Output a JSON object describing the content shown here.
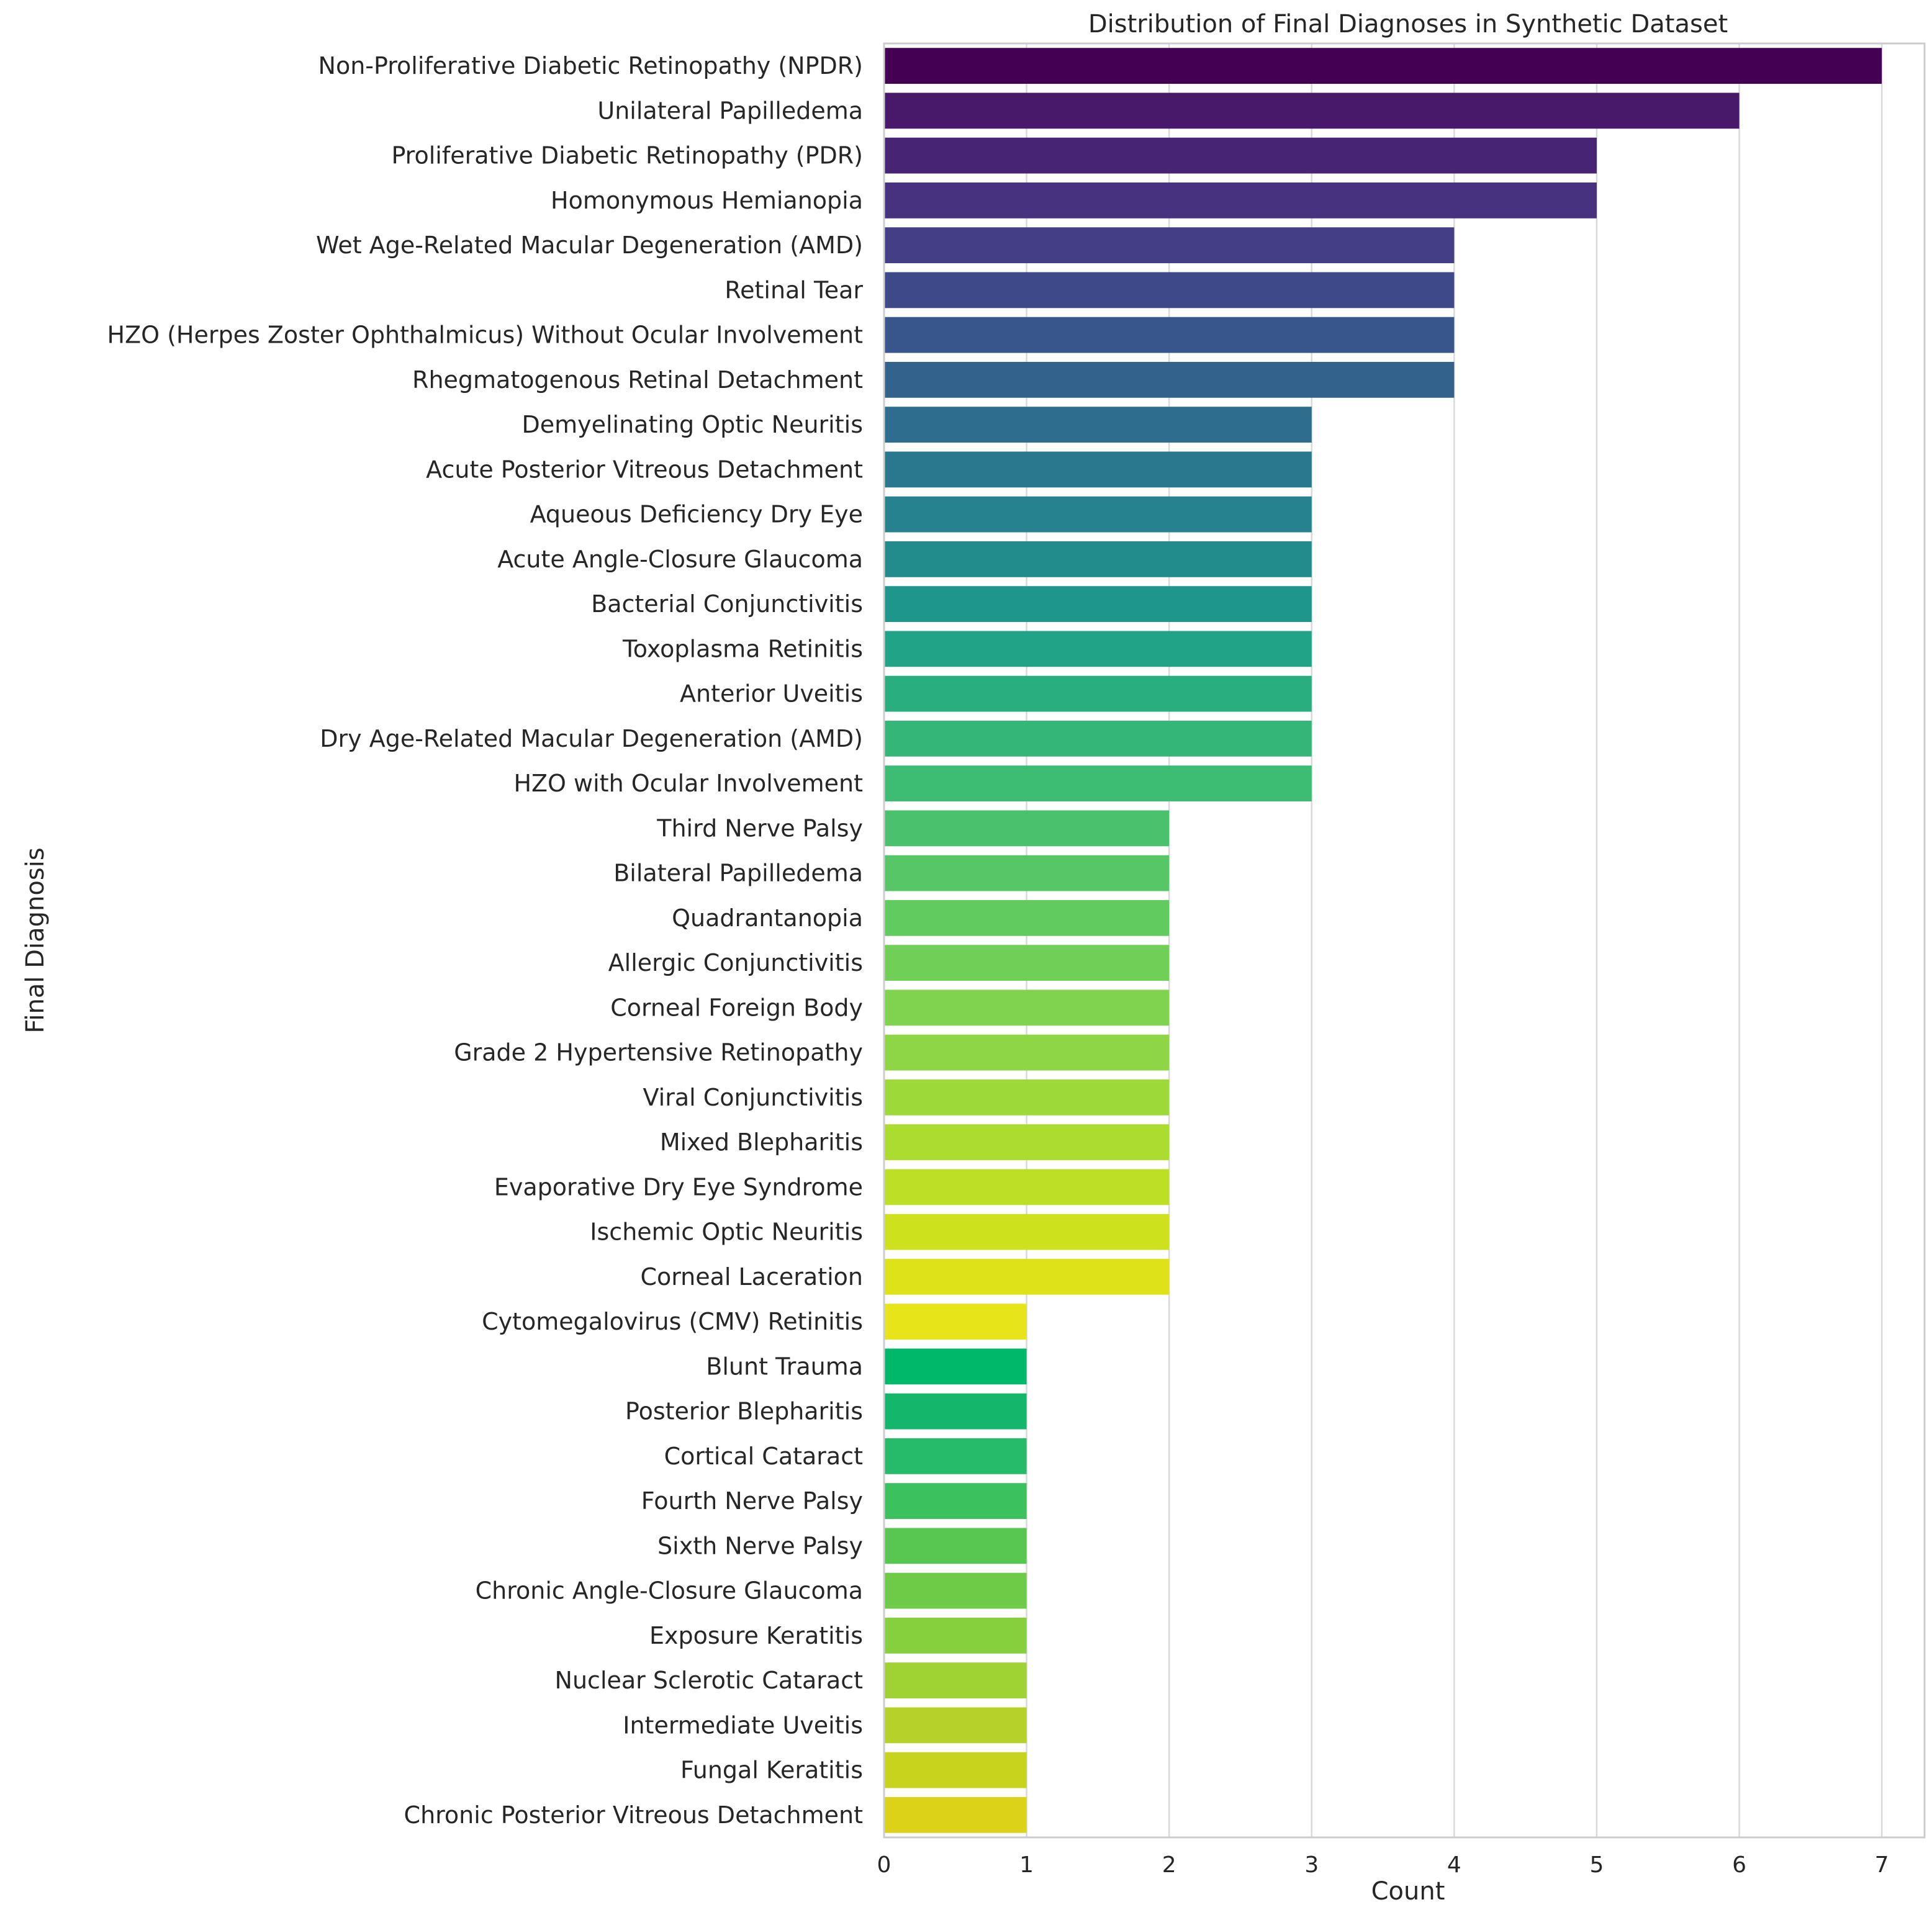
{
  "chart_data": {
    "type": "bar",
    "orientation": "horizontal",
    "title": "Distribution of Final Diagnoses in Synthetic Dataset",
    "xlabel": "Count",
    "ylabel": "Final Diagnosis",
    "xlim": [
      0,
      7.3
    ],
    "xticks": [
      0,
      1,
      2,
      3,
      4,
      5,
      6,
      7
    ],
    "grid": true,
    "palette": "viridis",
    "categories": [
      "Non-Proliferative Diabetic Retinopathy (NPDR)",
      "Unilateral Papilledema",
      "Proliferative Diabetic Retinopathy (PDR)",
      "Homonymous Hemianopia",
      "Wet Age-Related Macular Degeneration (AMD)",
      "Retinal Tear",
      "HZO (Herpes Zoster Ophthalmicus) Without Ocular Involvement",
      "Rhegmatogenous Retinal Detachment",
      "Demyelinating Optic Neuritis",
      "Acute Posterior Vitreous Detachment",
      "Aqueous Deficiency Dry Eye",
      "Acute Angle-Closure Glaucoma",
      "Bacterial Conjunctivitis",
      "Toxoplasma Retinitis",
      "Anterior Uveitis",
      "Dry Age-Related Macular Degeneration (AMD)",
      "HZO with Ocular Involvement",
      "Third Nerve Palsy",
      "Bilateral Papilledema",
      "Quadrantanopia",
      "Allergic Conjunctivitis",
      "Corneal Foreign Body",
      "Grade 2 Hypertensive Retinopathy",
      "Viral Conjunctivitis",
      "Mixed Blepharitis",
      "Evaporative Dry Eye Syndrome",
      "Ischemic Optic Neuritis",
      "Corneal Laceration",
      "Cytomegalovirus (CMV) Retinitis",
      "Blunt Trauma",
      "Posterior Blepharitis",
      "Cortical Cataract",
      "Fourth Nerve Palsy",
      "Sixth Nerve Palsy",
      "Chronic Angle-Closure Glaucoma",
      "Exposure Keratitis",
      "Nuclear Sclerotic Cataract",
      "Intermediate Uveitis",
      "Fungal Keratitis",
      "Chronic Posterior Vitreous Detachment"
    ],
    "values": [
      7,
      6,
      5,
      5,
      4,
      4,
      4,
      4,
      3,
      3,
      3,
      3,
      3,
      3,
      3,
      3,
      3,
      2,
      2,
      2,
      2,
      2,
      2,
      2,
      2,
      2,
      2,
      2,
      1,
      1,
      1,
      1,
      1,
      1,
      1,
      1,
      1,
      1,
      1,
      1
    ],
    "colors": [
      "#440154",
      "#48196b",
      "#482475",
      "#46327e",
      "#433e85",
      "#3e4989",
      "#39568c",
      "#33628d",
      "#2e6d8e",
      "#2a788e",
      "#26828e",
      "#228c8d",
      "#1f968b",
      "#20a386",
      "#29af7f",
      "#34b679",
      "#3dbc74",
      "#4ac16d",
      "#56c667",
      "#62cb5f",
      "#70cf57",
      "#7fd34e",
      "#8ed645",
      "#9ed93a",
      "#addc30",
      "#bddf26",
      "#cde11d",
      "#dde318",
      "#e7e419",
      "#00b869",
      "#13b66b",
      "#26bb6a",
      "#3cc15f",
      "#58c751",
      "#6ecb48",
      "#86cf3d",
      "#9fd334",
      "#b6d22a",
      "#c7d31c",
      "#dcd319"
    ]
  }
}
